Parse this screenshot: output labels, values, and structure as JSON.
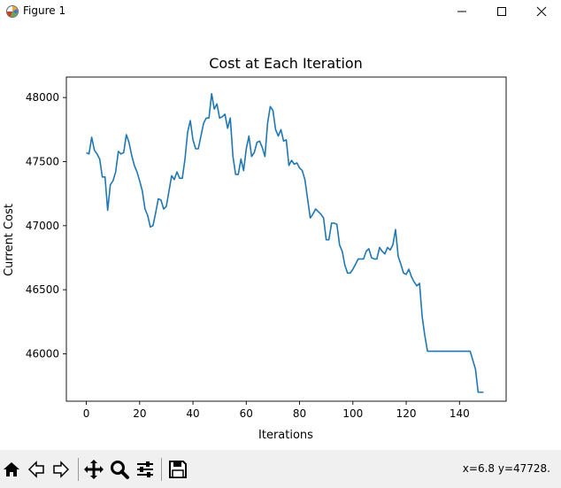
{
  "window": {
    "title": "Figure 1"
  },
  "toolbar": {
    "buttons": [
      {
        "name": "home-icon"
      },
      {
        "name": "back-arrow-icon"
      },
      {
        "name": "forward-arrow-icon"
      },
      {
        "name": "pan-icon"
      },
      {
        "name": "zoom-icon"
      },
      {
        "name": "configure-subplots-icon"
      },
      {
        "name": "save-icon"
      }
    ],
    "coordinates": "x=6.8 y=47728."
  },
  "colors": {
    "line": "#1f77b4",
    "toolbar_bg": "#f0f0f0"
  },
  "chart_data": {
    "type": "line",
    "title": "Cost at Each Iteration",
    "xlabel": "Iterations",
    "ylabel": "Current Cost",
    "xlim": [
      -7.5,
      157.5
    ],
    "ylim": [
      45630,
      48160
    ],
    "xticks": [
      0,
      20,
      40,
      60,
      80,
      100,
      120,
      140
    ],
    "yticks": [
      46000,
      46500,
      47000,
      47500,
      48000
    ],
    "grid": false,
    "series": [
      {
        "x": [
          0,
          1,
          2,
          3,
          4,
          5,
          6,
          7,
          8,
          9,
          10,
          11,
          12,
          13,
          14,
          15,
          16,
          17,
          18,
          19,
          20,
          21,
          22,
          23,
          24,
          25,
          26,
          27,
          28,
          29,
          30,
          31,
          32,
          33,
          34,
          35,
          36,
          37,
          38,
          39,
          40,
          41,
          42,
          43,
          44,
          45,
          46,
          47,
          48,
          49,
          50,
          51,
          52,
          53,
          54,
          55,
          56,
          57,
          58,
          59,
          60,
          61,
          62,
          63,
          64,
          65,
          66,
          67,
          68,
          69,
          70,
          71,
          72,
          73,
          74,
          75,
          76,
          77,
          78,
          79,
          80,
          81,
          82,
          83,
          84,
          85,
          86,
          87,
          88,
          89,
          90,
          91,
          92,
          93,
          94,
          95,
          96,
          97,
          98,
          99,
          100,
          101,
          102,
          103,
          104,
          105,
          106,
          107,
          108,
          109,
          110,
          111,
          112,
          113,
          114,
          115,
          116,
          117,
          118,
          119,
          120,
          121,
          122,
          123,
          124,
          125,
          126,
          127,
          128,
          129,
          130,
          131,
          132,
          133,
          134,
          135,
          136,
          137,
          138,
          139,
          140,
          141,
          142,
          143,
          144,
          145,
          146,
          147,
          148,
          149
        ],
        "y": [
          47570,
          47560,
          47690,
          47590,
          47560,
          47520,
          47380,
          47380,
          47120,
          47320,
          47350,
          47420,
          47580,
          47560,
          47570,
          47710,
          47650,
          47550,
          47470,
          47420,
          47350,
          47270,
          47130,
          47080,
          46990,
          47000,
          47100,
          47210,
          47200,
          47130,
          47150,
          47270,
          47390,
          47360,
          47420,
          47370,
          47370,
          47520,
          47730,
          47820,
          47670,
          47600,
          47600,
          47700,
          47800,
          47840,
          47840,
          48030,
          47910,
          47950,
          47840,
          47850,
          47870,
          47760,
          47840,
          47540,
          47400,
          47400,
          47520,
          47430,
          47600,
          47700,
          47540,
          47570,
          47650,
          47660,
          47610,
          47540,
          47800,
          47930,
          47900,
          47750,
          47700,
          47750,
          47660,
          47670,
          47470,
          47510,
          47480,
          47490,
          47450,
          47430,
          47360,
          47210,
          47060,
          47090,
          47130,
          47110,
          47090,
          47060,
          46890,
          46890,
          47020,
          47020,
          47010,
          46850,
          46800,
          46690,
          46630,
          46630,
          46660,
          46700,
          46740,
          46740,
          46740,
          46800,
          46820,
          46750,
          46740,
          46740,
          46830,
          46800,
          46780,
          46830,
          46810,
          46850,
          46970,
          46760,
          46700,
          46630,
          46620,
          46660,
          46600,
          46560,
          46530,
          46550,
          46290,
          46140,
          46020,
          46020,
          46020,
          46020,
          46020,
          46020,
          46020,
          46020,
          46020,
          46020,
          46020,
          46020,
          46020,
          46020,
          46020,
          46020,
          46020,
          45950,
          45880,
          45700,
          45700,
          45700
        ]
      }
    ]
  }
}
